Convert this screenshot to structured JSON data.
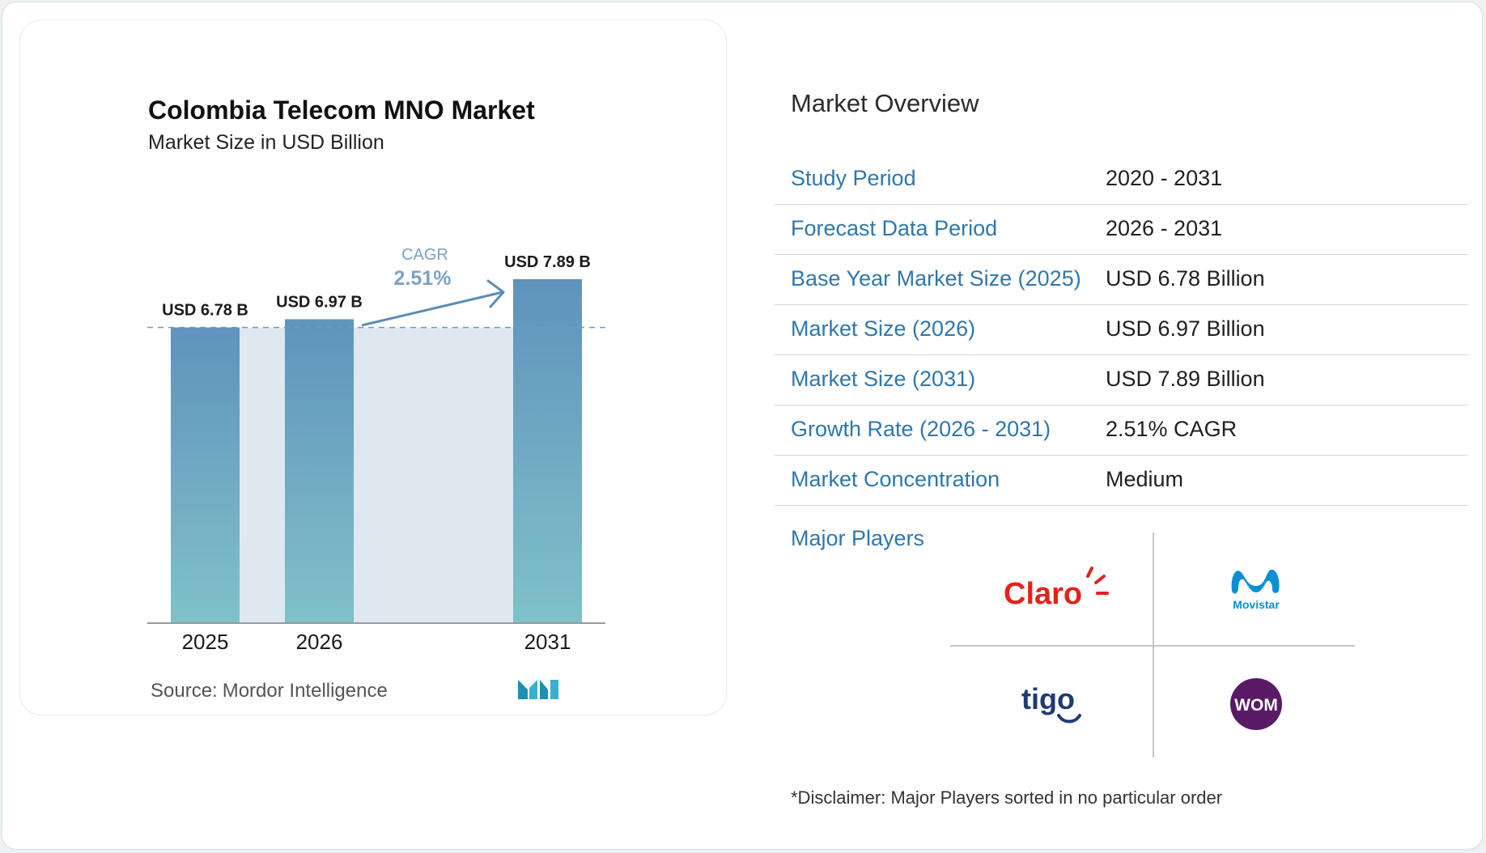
{
  "chart_data": {
    "type": "bar",
    "title": "Colombia Telecom MNO Market",
    "subtitle": "Market Size in USD Billion",
    "categories": [
      "2025",
      "2026",
      "2031"
    ],
    "values": [
      6.78,
      6.97,
      7.89
    ],
    "data_labels": [
      "USD 6.78 B",
      "USD 6.97 B",
      "USD 7.89 B"
    ],
    "cagr_label": "CAGR",
    "cagr_value": "2.51%",
    "ylim": [
      0,
      7.89
    ],
    "colors": {
      "bar_top": "#5f93bc",
      "bar_bottom": "#7fc1c9",
      "band": "#dde8f0",
      "arrow": "#5a8db6"
    }
  },
  "source": {
    "label": "Source:",
    "name": "Mordor Intelligence"
  },
  "overview": {
    "title": "Market Overview",
    "rows": [
      {
        "label": "Study Period",
        "value": "2020 - 2031"
      },
      {
        "label": "Forecast Data Period",
        "value": "2026 - 2031"
      },
      {
        "label": "Base Year Market Size (2025)",
        "value": "USD 6.78 Billion"
      },
      {
        "label": "Market Size (2026)",
        "value": "USD 6.97 Billion"
      },
      {
        "label": "Market Size (2031)",
        "value": "USD 7.89 Billion"
      },
      {
        "label": "Growth Rate (2026 - 2031)",
        "value": "2.51% CAGR"
      },
      {
        "label": "Market Concentration",
        "value": "Medium"
      }
    ]
  },
  "players": {
    "title": "Major Players",
    "logos": [
      {
        "name": "Claro",
        "color": "#e2231a"
      },
      {
        "name": "Movistar",
        "color": "#0b8fd4"
      },
      {
        "name": "tigo",
        "color": "#1f3b73"
      },
      {
        "name": "WOM",
        "color": "#5a1a66"
      }
    ]
  },
  "disclaimer": "*Disclaimer: Major Players sorted in no particular order"
}
